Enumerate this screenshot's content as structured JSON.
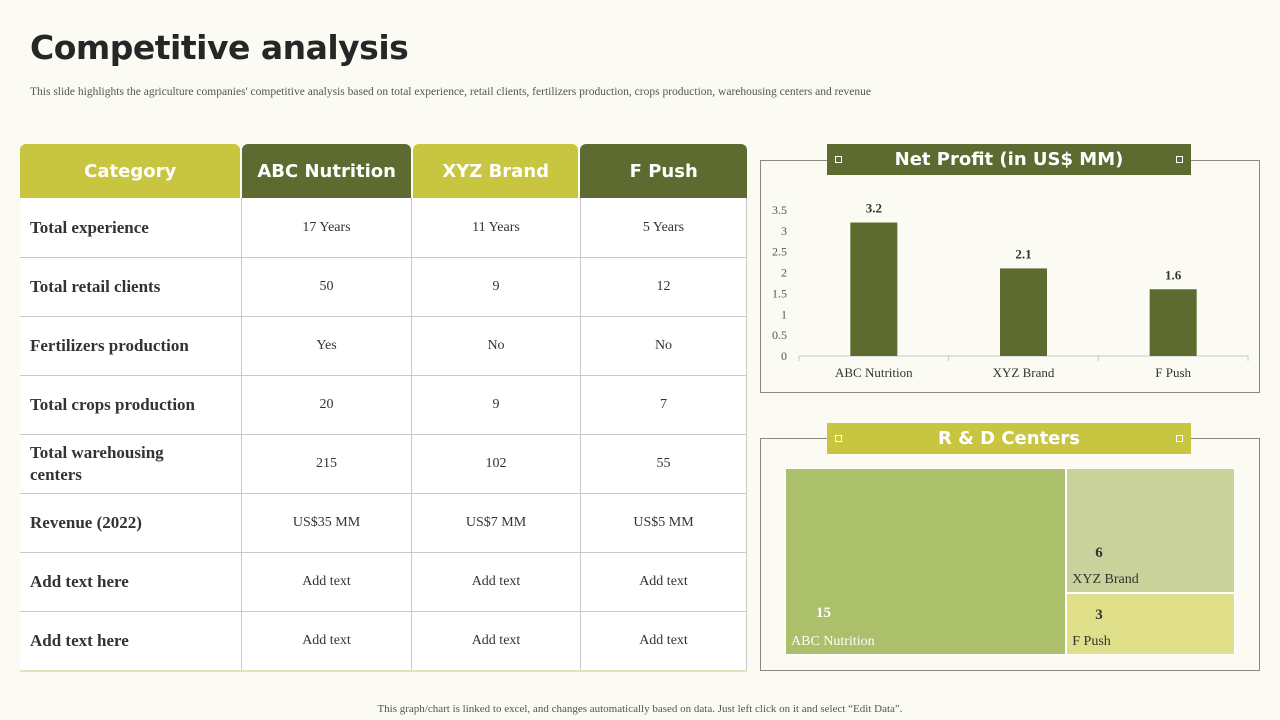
{
  "slide": {
    "title": "Competitive analysis",
    "subtitle": "This slide highlights the agriculture companies' competitive analysis based on total experience,  retail clients, fertilizers  production, crops production, warehousing centers and revenue",
    "footer": "This graph/chart is linked to excel,  and changes automatically based on data. Just left click on it and select “Edit Data”."
  },
  "table": {
    "headers": [
      "Category",
      "ABC Nutrition",
      "XYZ Brand",
      "F Push"
    ],
    "rows": [
      [
        "Total experience",
        "17 Years",
        "11 Years",
        "5 Years"
      ],
      [
        "Total retail clients",
        "50",
        "9",
        "12"
      ],
      [
        "Fertilizers production",
        "Yes",
        "No",
        "No"
      ],
      [
        "Total crops production",
        "20",
        "9",
        "7"
      ],
      [
        "Total warehousing centers",
        "215",
        "102",
        "55"
      ],
      [
        "Revenue (2022)",
        "US$35 MM",
        "US$7 MM",
        "US$5 MM"
      ],
      [
        "Add  text here",
        "Add text",
        "Add text",
        "Add text"
      ],
      [
        "Add  text here",
        "Add text",
        "Add text",
        "Add text"
      ]
    ]
  },
  "colors": {
    "dark_green": "#5e6b30",
    "light_green": "#c8c640",
    "tm_abc": "#acbf6a",
    "tm_xyz": "#c8d29a",
    "tm_fpush": "#e0e08a"
  },
  "chart_data": [
    {
      "type": "bar",
      "title": "Net Profit (in US$ MM)",
      "categories": [
        "ABC Nutrition",
        "XYZ Brand",
        "F Push"
      ],
      "values": [
        3.2,
        2.1,
        1.6
      ],
      "data_labels": [
        "3.2",
        "2.1",
        "1.6"
      ],
      "ylim": [
        0,
        3.5
      ],
      "yticks": [
        "0",
        "0.5",
        "1",
        "1.5",
        "2",
        "2.5",
        "3",
        "3.5"
      ],
      "grid": false,
      "color": "#5e6b30"
    },
    {
      "type": "treemap",
      "title": "R & D Centers",
      "categories": [
        "ABC Nutrition",
        "XYZ Brand",
        "F Push"
      ],
      "values": [
        15,
        6,
        3
      ],
      "data_labels": [
        "15",
        "6",
        "3"
      ]
    }
  ]
}
